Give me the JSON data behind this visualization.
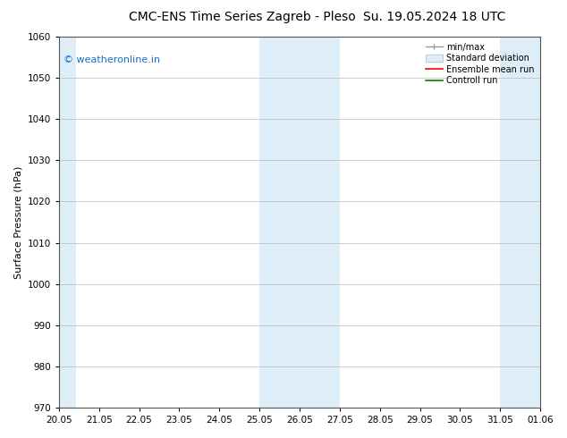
{
  "title_left": "CMC-ENS Time Series Zagreb - Pleso",
  "title_right": "Su. 19.05.2024 18 UTC",
  "ylabel": "Surface Pressure (hPa)",
  "ylim": [
    970,
    1060
  ],
  "yticks": [
    970,
    980,
    990,
    1000,
    1010,
    1020,
    1030,
    1040,
    1050,
    1060
  ],
  "x_labels": [
    "20.05",
    "21.05",
    "22.05",
    "23.05",
    "24.05",
    "25.05",
    "26.05",
    "27.05",
    "28.05",
    "29.05",
    "30.05",
    "31.05",
    "01.06"
  ],
  "x_positions": [
    0,
    1,
    2,
    3,
    4,
    5,
    6,
    7,
    8,
    9,
    10,
    11,
    12
  ],
  "xlim": [
    0,
    12
  ],
  "shaded_regions": [
    {
      "x_start": -0.08,
      "x_end": 0.42,
      "color": "#ddeef8"
    },
    {
      "x_start": 5.0,
      "x_end": 7.0,
      "color": "#ddeef8"
    },
    {
      "x_start": 11.0,
      "x_end": 12.08,
      "color": "#ddeef8"
    }
  ],
  "watermark_text": "© weatheronline.in",
  "watermark_color": "#1a6bc4",
  "watermark_fontsize": 8,
  "bg_color": "#ffffff",
  "plot_bg_color": "#ffffff",
  "grid_color": "#bbbbbb",
  "title_fontsize": 10,
  "axis_label_fontsize": 8,
  "tick_fontsize": 7.5
}
